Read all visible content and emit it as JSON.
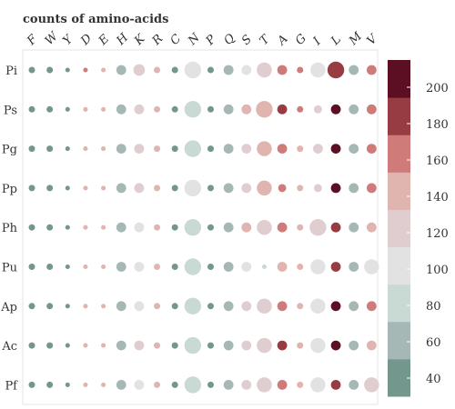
{
  "chart_data": {
    "type": "heatmap",
    "title": "counts of amino-acids",
    "columns": [
      "F",
      "W",
      "Y",
      "D",
      "E",
      "H",
      "K",
      "R",
      "C",
      "N",
      "P",
      "Q",
      "S",
      "T",
      "A",
      "G",
      "I",
      "L",
      "M",
      "V"
    ],
    "rows": [
      "Pi",
      "Ps",
      "Pg",
      "Pp",
      "Ph",
      "Pu",
      "Ap",
      "Ac",
      "Pf"
    ],
    "values": [
      [
        25,
        30,
        20,
        155,
        150,
        55,
        120,
        150,
        40,
        100,
        20,
        70,
        110,
        125,
        160,
        160,
        105,
        180,
        65,
        160
      ],
      [
        25,
        35,
        20,
        150,
        150,
        55,
        125,
        150,
        40,
        80,
        20,
        70,
        140,
        140,
        180,
        160,
        125,
        210,
        65,
        160
      ],
      [
        25,
        35,
        20,
        145,
        150,
        55,
        125,
        150,
        40,
        80,
        20,
        70,
        125,
        150,
        165,
        150,
        125,
        210,
        65,
        165
      ],
      [
        25,
        35,
        20,
        145,
        150,
        55,
        125,
        150,
        40,
        100,
        20,
        70,
        125,
        150,
        165,
        150,
        125,
        210,
        65,
        165
      ],
      [
        25,
        35,
        20,
        145,
        150,
        55,
        100,
        150,
        40,
        80,
        20,
        70,
        140,
        120,
        165,
        150,
        125,
        175,
        65,
        140
      ],
      [
        25,
        35,
        20,
        150,
        150,
        55,
        100,
        150,
        40,
        80,
        20,
        55,
        100,
        80,
        140,
        150,
        100,
        175,
        65,
        100
      ],
      [
        25,
        35,
        20,
        150,
        150,
        55,
        100,
        150,
        40,
        80,
        20,
        70,
        125,
        120,
        165,
        150,
        100,
        210,
        65,
        160
      ],
      [
        25,
        35,
        20,
        145,
        150,
        55,
        125,
        150,
        40,
        80,
        20,
        70,
        125,
        120,
        175,
        150,
        100,
        210,
        65,
        140
      ],
      [
        25,
        35,
        20,
        150,
        150,
        55,
        100,
        150,
        40,
        80,
        20,
        55,
        125,
        120,
        165,
        150,
        100,
        175,
        65,
        120
      ]
    ],
    "sizes": [
      [
        2,
        2,
        1,
        1,
        1,
        4,
        5,
        2,
        2,
        8,
        2,
        4,
        4,
        7,
        4,
        2,
        7,
        8,
        4,
        4
      ],
      [
        2,
        2,
        1,
        1,
        1,
        4,
        4,
        2,
        2,
        8,
        2,
        4,
        4,
        8,
        4,
        2,
        3,
        4,
        4,
        4
      ],
      [
        2,
        2,
        1,
        1,
        1,
        4,
        4,
        2,
        2,
        8,
        2,
        4,
        4,
        7,
        4,
        2,
        4,
        4,
        4,
        4
      ],
      [
        2,
        2,
        1,
        1,
        1,
        4,
        4,
        2,
        2,
        8,
        2,
        4,
        4,
        7,
        3,
        2,
        3,
        4,
        4,
        4
      ],
      [
        2,
        2,
        1,
        1,
        1,
        4,
        4,
        2,
        2,
        8,
        2,
        4,
        4,
        7,
        4,
        2,
        8,
        4,
        4,
        4
      ],
      [
        2,
        2,
        1,
        1,
        1,
        4,
        4,
        2,
        2,
        8,
        2,
        4,
        4,
        1,
        4,
        2,
        7,
        4,
        4,
        7
      ],
      [
        2,
        2,
        1,
        1,
        1,
        4,
        4,
        2,
        2,
        8,
        2,
        4,
        4,
        7,
        4,
        2,
        7,
        4,
        4,
        4
      ],
      [
        2,
        2,
        1,
        1,
        1,
        4,
        4,
        2,
        2,
        8,
        2,
        4,
        4,
        7,
        4,
        2,
        7,
        4,
        4,
        4
      ],
      [
        2,
        2,
        1,
        1,
        1,
        4,
        4,
        2,
        2,
        8,
        2,
        4,
        4,
        7,
        4,
        2,
        7,
        4,
        4,
        7
      ]
    ],
    "colorbar": {
      "ticks": [
        40,
        60,
        80,
        100,
        120,
        140,
        160,
        180,
        200
      ],
      "min": 30,
      "max": 215,
      "colors": [
        "#74978d",
        "#a5b8b5",
        "#c9dad4",
        "#e2e2e2",
        "#e0cdd0",
        "#e0b5b0",
        "#cf7b7a",
        "#973c42",
        "#5c0e22"
      ]
    },
    "grid": false
  }
}
